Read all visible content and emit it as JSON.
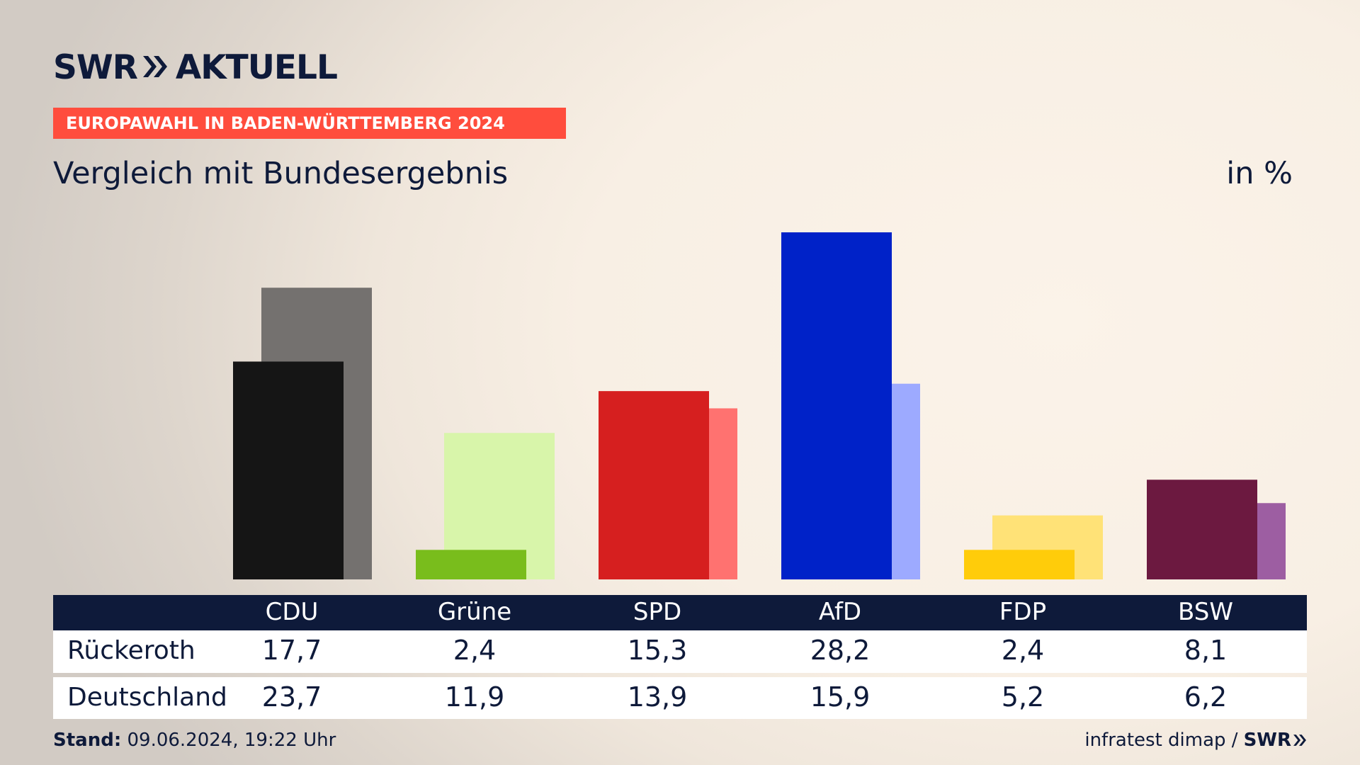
{
  "header": {
    "brand": "SWR",
    "brand_suffix": "AKTUELL",
    "banner": "EUROPAWAHL IN BADEN-WÜRTTEMBERG 2024",
    "subtitle": "Vergleich mit Bundesergebnis",
    "unit": "in %"
  },
  "colors": {
    "navy": "#0e1a3a",
    "banner": "#ff4d3d"
  },
  "chart_data": {
    "type": "bar",
    "categories": [
      "CDU",
      "Grüne",
      "SPD",
      "AfD",
      "FDP",
      "BSW"
    ],
    "series": [
      {
        "name": "Rückeroth",
        "values": [
          17.7,
          2.4,
          15.3,
          28.2,
          2.4,
          8.1
        ],
        "colors": [
          "#151515",
          "#79bd1c",
          "#d61f1f",
          "#0022c8",
          "#ffcc0a",
          "#6c1940"
        ]
      },
      {
        "name": "Deutschland",
        "values": [
          23.7,
          11.9,
          13.9,
          15.9,
          5.2,
          6.2
        ],
        "colors": [
          "#74716f",
          "#d8f5aa",
          "#ff7270",
          "#9daaff",
          "#ffe277",
          "#9d5ea2"
        ]
      }
    ],
    "ylim": [
      0,
      28.2
    ],
    "grid": false,
    "legend": "table-below"
  },
  "table": {
    "rows": [
      {
        "label": "Rückeroth",
        "values": [
          "17,7",
          "2,4",
          "15,3",
          "28,2",
          "2,4",
          "8,1"
        ]
      },
      {
        "label": "Deutschland",
        "values": [
          "23,7",
          "11,9",
          "13,9",
          "15,9",
          "5,2",
          "6,2"
        ]
      }
    ]
  },
  "footer": {
    "stand_label": "Stand:",
    "stand_value": "09.06.2024, 19:22 Uhr",
    "source": "infratest dimap /",
    "source_brand": "SWR"
  }
}
